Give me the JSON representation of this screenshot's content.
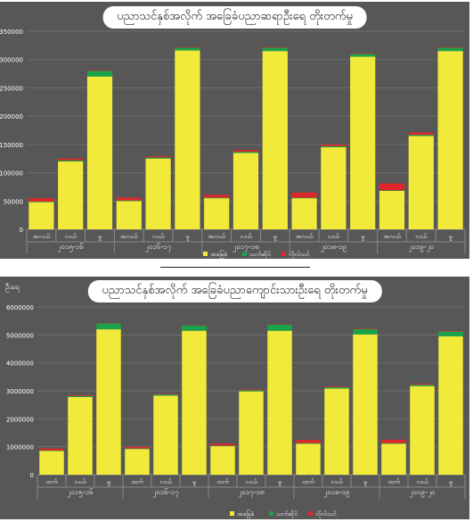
{
  "legend": {
    "basic": "အခြေခံ",
    "qualified": "သက်ဆိုင်",
    "volunteer": "လိုလ်သင်"
  },
  "colors": {
    "basic": "#f2ea3a",
    "qualified": "#1aa34a",
    "volunteer": "#e0262a",
    "background": "#575757",
    "grid": "#6c6c6c"
  },
  "chart_data": [
    {
      "type": "bar",
      "stacked": true,
      "title": "ပညာသင်နှစ်အလိုက် အခြေခံပညာဆရာဦးရေ တိုးတက်မှု",
      "ylabel": "",
      "ylim": [
        0,
        350000
      ],
      "yticks": [
        "0",
        "50000",
        "100000",
        "150000",
        "200000",
        "250000",
        "300000",
        "350000"
      ],
      "grid": true,
      "legend_position": "bottom",
      "groups": [
        "၂၀၁၅-၁၆",
        "၂၀၁၆-၁၇",
        "၂၀၁၇-၁၈",
        "၂၀၁၈-၁၉",
        "၂၀၁၉-၂၀"
      ],
      "categories": [
        "အလယ်",
        "လယ်",
        "မူ",
        "အလယ်",
        "လယ်",
        "မူ",
        "အလယ်",
        "လယ်",
        "မူ",
        "အလယ်",
        "လယ်",
        "မူ",
        "အလယ်",
        "လယ်",
        "မူ"
      ],
      "series": [
        {
          "name": "အခြေခံ",
          "values": [
            48000,
            120000,
            270000,
            50000,
            125000,
            316000,
            55000,
            135000,
            315000,
            55000,
            145000,
            305000,
            68000,
            165000,
            315000
          ]
        },
        {
          "name": "သက်ဆိုင်",
          "values": [
            1000,
            2000,
            10000,
            1000,
            2000,
            5000,
            1000,
            2000,
            6000,
            1000,
            2000,
            5000,
            1000,
            2000,
            6000
          ]
        },
        {
          "name": "လိုလ်သင်",
          "values": [
            6000,
            3000,
            1000,
            5000,
            2000,
            1000,
            5000,
            3000,
            1000,
            9000,
            3000,
            1000,
            12000,
            4000,
            1000
          ]
        }
      ]
    },
    {
      "type": "bar",
      "stacked": true,
      "title": "ပညာသင်နှစ်အလိုက် အခြေခံပညာကျောင်းသားဦးရေ တိုးတက်မှု",
      "ylabel": "ဦးရေ",
      "ylim": [
        0,
        6000000
      ],
      "yticks": [
        "0",
        "1000000",
        "2000000",
        "3000000",
        "4000000",
        "5000000",
        "6000000"
      ],
      "grid": true,
      "legend_position": "bottom",
      "groups": [
        "၂၀၁၅-၁၆",
        "၂၀၁၆-၁၇",
        "၂၀၁၇-၁၈",
        "၂၀၁၈-၁၉",
        "၂၀၁၉-၂၀"
      ],
      "categories": [
        "ထက်",
        "လယ်",
        "မူ",
        "ထက်",
        "လယ်",
        "မူ",
        "ထက်",
        "လယ်",
        "မူ",
        "ထက်",
        "လယ်",
        "မူ",
        "ထက်",
        "လယ်",
        "မူ"
      ],
      "series": [
        {
          "name": "အခြေခံ",
          "values": [
            850000,
            2780000,
            5200000,
            920000,
            2830000,
            5150000,
            1020000,
            2980000,
            5150000,
            1110000,
            3080000,
            5020000,
            1110000,
            3170000,
            4950000
          ]
        },
        {
          "name": "သက်ဆိုင်",
          "values": [
            20000,
            40000,
            210000,
            20000,
            40000,
            190000,
            20000,
            40000,
            220000,
            20000,
            50000,
            190000,
            20000,
            50000,
            170000
          ]
        },
        {
          "name": "လိုလ်သင်",
          "values": [
            70000,
            30000,
            10000,
            60000,
            20000,
            10000,
            70000,
            30000,
            10000,
            110000,
            30000,
            20000,
            120000,
            30000,
            20000
          ]
        }
      ]
    }
  ]
}
